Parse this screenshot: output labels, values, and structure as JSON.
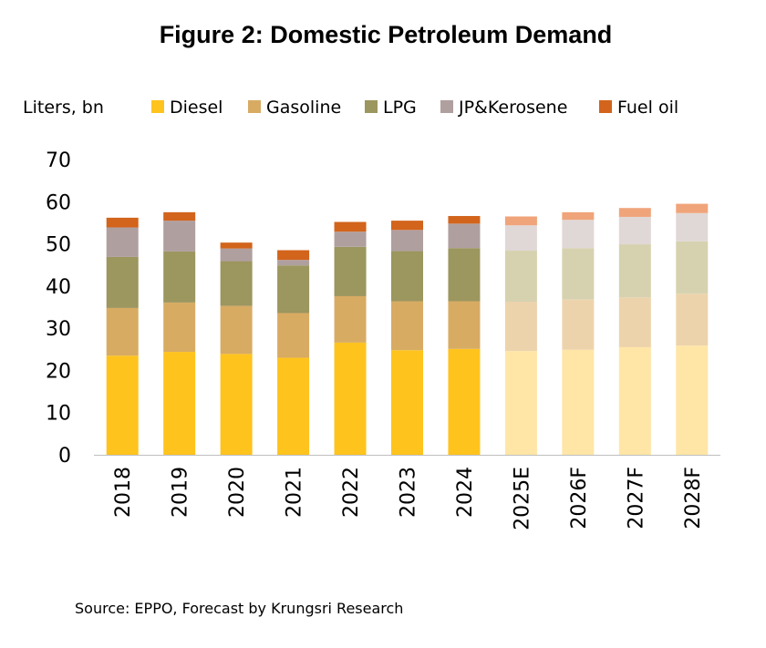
{
  "chart_data": {
    "type": "bar",
    "stacked": true,
    "title": "Figure 2: Domestic Petroleum Demand",
    "ylabel": "Liters, bn",
    "xlabel": "",
    "ylim": [
      0,
      70
    ],
    "yticks": [
      0,
      10,
      20,
      30,
      40,
      50,
      60,
      70
    ],
    "grid": false,
    "legend_position": "top",
    "categories": [
      "2018",
      "2019",
      "2020",
      "2021",
      "2022",
      "2023",
      "2024",
      "2025E",
      "2026F",
      "2027F",
      "2028F"
    ],
    "forecast_from_index": 7,
    "series": [
      {
        "name": "Diesel",
        "color": "#FFC31E",
        "forecast_color": "#FFE6A6",
        "values": [
          23.5,
          24.4,
          23.9,
          23.0,
          26.6,
          24.8,
          25.1,
          24.6,
          24.9,
          25.5,
          25.9
        ]
      },
      {
        "name": "Gasoline",
        "color": "#D8AB63",
        "forecast_color": "#EDD3AC",
        "values": [
          11.3,
          11.7,
          11.4,
          10.6,
          11.0,
          11.6,
          11.3,
          11.7,
          11.9,
          11.8,
          12.3
        ]
      },
      {
        "name": "LPG",
        "color": "#9C965F",
        "forecast_color": "#D6D2B0",
        "values": [
          12.1,
          12.1,
          10.6,
          11.3,
          11.7,
          11.9,
          12.6,
          12.1,
          12.2,
          12.6,
          12.4
        ]
      },
      {
        "name": "JP&Kerosene",
        "color": "#B09F9F",
        "forecast_color": "#E0D8D6",
        "values": [
          7.0,
          7.3,
          3.0,
          1.3,
          3.6,
          5.0,
          5.8,
          6.0,
          6.7,
          6.5,
          6.7
        ]
      },
      {
        "name": "Fuel oil",
        "color": "#D2641C",
        "forecast_color": "#F0A47A",
        "values": [
          2.3,
          2.0,
          1.4,
          2.3,
          2.3,
          2.2,
          1.8,
          2.1,
          1.8,
          2.1,
          2.2
        ]
      }
    ],
    "source": "Source: EPPO, Forecast by Krungsri Research"
  }
}
